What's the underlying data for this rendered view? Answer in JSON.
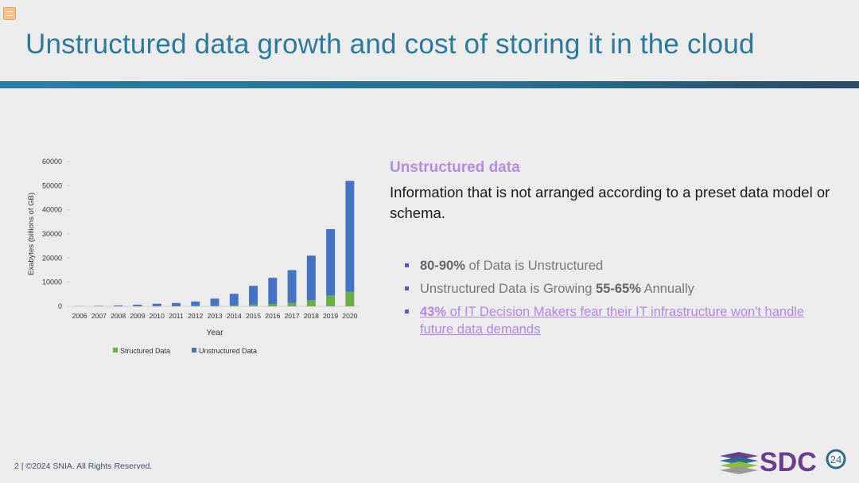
{
  "slide": {
    "title": "Unstructured data growth and cost of storing it in the cloud",
    "footer": "2 | ©2024 SNIA. All Rights Reserved.",
    "logo_text": "SDC",
    "logo_badge": "24"
  },
  "panel": {
    "subheading": "Unstructured data",
    "definition": "Information that is not arranged according to a preset data model or schema.",
    "bullet1": {
      "bold": "80-90%",
      "rest": " of Data is Unstructured"
    },
    "bullet2": {
      "pre": "Unstructured Data is Growing ",
      "bold": "55-65%",
      "post": " Annually"
    },
    "bullet3": {
      "bold": "43%",
      "rest": " of IT Decision Makers fear their IT infrastructure won't handle future data demands"
    }
  },
  "colors": {
    "title": "#2a7a9c",
    "structured": "#6aae45",
    "unstructured": "#4472c4",
    "accent": "#b58ce0",
    "bullet": "#7a4bb0"
  },
  "chart_data": {
    "type": "bar",
    "stacked": true,
    "xlabel": "Year",
    "ylabel": "Exabytes (billions of GB)",
    "ylim": [
      0,
      60000
    ],
    "yticks": [
      0,
      10000,
      20000,
      30000,
      40000,
      50000,
      60000
    ],
    "categories": [
      "2006",
      "2007",
      "2008",
      "2009",
      "2010",
      "2011",
      "2012",
      "2013",
      "2014",
      "2015",
      "2016",
      "2017",
      "2018",
      "2019",
      "2020"
    ],
    "series": [
      {
        "name": "Structured Data",
        "color": "#6aae45",
        "values": [
          20,
          30,
          50,
          80,
          120,
          180,
          250,
          350,
          500,
          700,
          1000,
          1500,
          2500,
          4500,
          6000
        ]
      },
      {
        "name": "Unstructured Data",
        "color": "#4472c4",
        "values": [
          80,
          170,
          350,
          620,
          980,
          1220,
          1750,
          2850,
          4700,
          7800,
          10800,
          13500,
          18500,
          27500,
          46000
        ]
      }
    ],
    "legend": "bottom"
  }
}
